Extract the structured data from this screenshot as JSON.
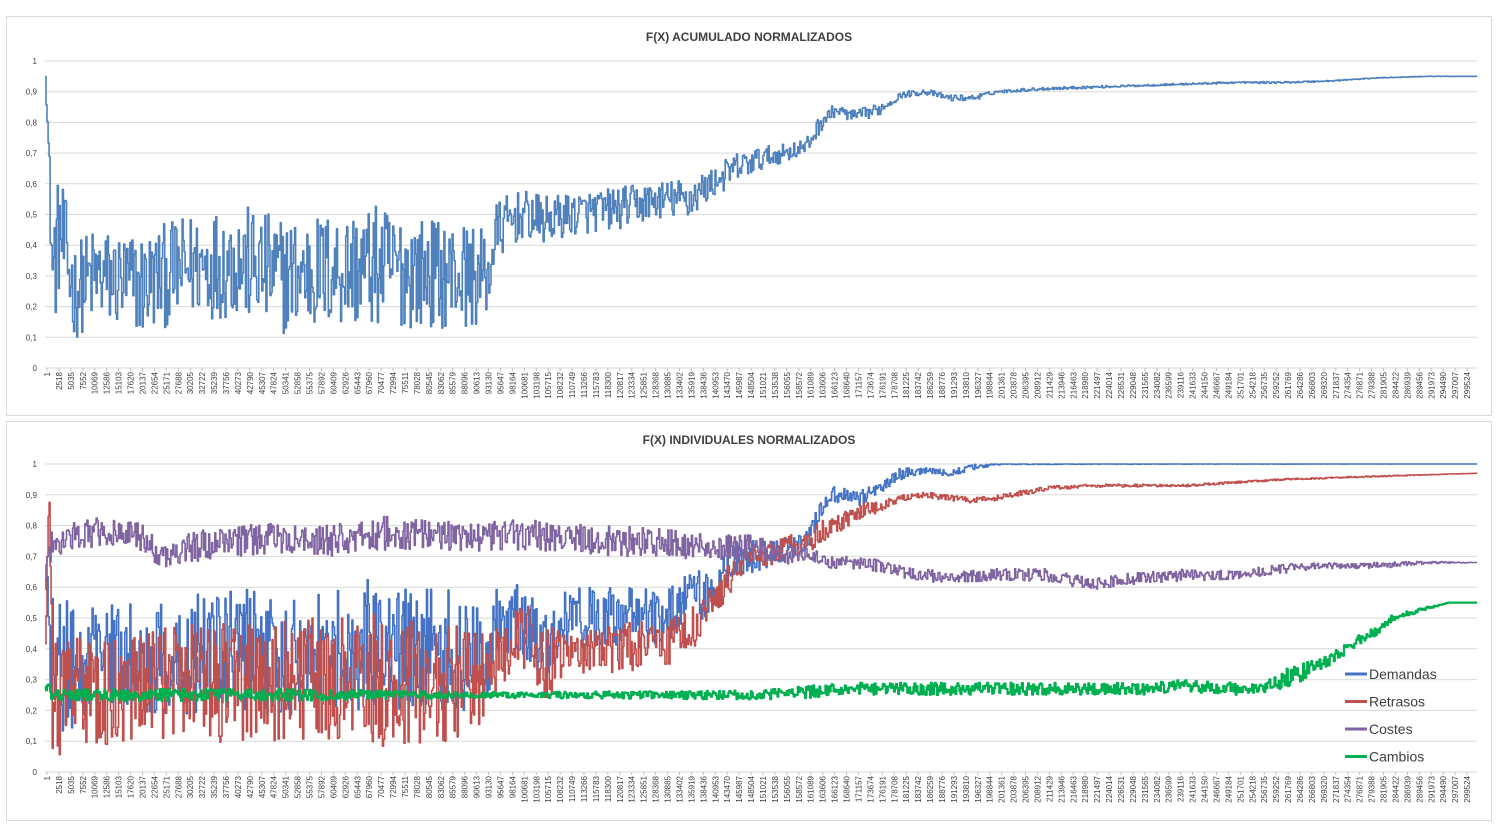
{
  "colors": {
    "demandas": "#4472c4",
    "retrasos": "#c0504d",
    "costes": "#8064a2",
    "cambios": "#00b050",
    "acumulado": "#4f81bd",
    "grid": "#d9d9d9",
    "text": "#3f3f3f"
  },
  "chart_data": [
    {
      "type": "line",
      "title": "F(X) ACUMULADO NORMALIZADOS",
      "xlabel": "",
      "ylabel": "",
      "ylim": [
        0,
        1
      ],
      "yticks": [
        "0",
        "0,1",
        "0,2",
        "0,3",
        "0,4",
        "0,5",
        "0,6",
        "0,7",
        "0,8",
        "0,9",
        "1"
      ],
      "xticks": [
        "1",
        "2518",
        "5035",
        "7552",
        "10069",
        "12586",
        "15103",
        "17620",
        "20137",
        "22654",
        "25171",
        "27688",
        "30205",
        "32722",
        "35239",
        "37756",
        "40273",
        "42790",
        "45307",
        "47824",
        "50341",
        "52858",
        "55375",
        "57892",
        "60409",
        "62926",
        "65443",
        "67960",
        "70477",
        "72994",
        "75511",
        "78028",
        "80545",
        "83062",
        "85579",
        "88096",
        "90613",
        "93130",
        "95647",
        "98164",
        "100681",
        "103198",
        "105715",
        "108232",
        "110749",
        "113266",
        "115783",
        "118300",
        "120817",
        "123334",
        "125851",
        "128368",
        "130885",
        "133402",
        "135919",
        "138436",
        "140953",
        "143470",
        "145987",
        "148504",
        "151021",
        "153538",
        "156055",
        "158572",
        "161089",
        "163606",
        "166123",
        "168640",
        "171157",
        "173674",
        "176191",
        "178708",
        "181225",
        "183742",
        "186259",
        "188776",
        "191293",
        "193810",
        "196327",
        "198844",
        "201361",
        "203878",
        "206395",
        "208912",
        "211429",
        "213946",
        "216463",
        "218980",
        "221497",
        "224014",
        "226531",
        "229048",
        "231565",
        "234082",
        "236599",
        "239116",
        "241633",
        "244150",
        "246667",
        "249184",
        "251701",
        "254218",
        "256735",
        "259252",
        "261769",
        "264286",
        "266803",
        "269320",
        "271837",
        "274354",
        "276871",
        "279388",
        "281905",
        "284422",
        "286939",
        "289456",
        "291973",
        "294490",
        "297007",
        "299524"
      ],
      "grid": true,
      "legend": "none",
      "series": [
        {
          "color": "#4f81bd",
          "x": [
            1,
            600,
            1500,
            3000,
            6000,
            10000,
            20000,
            30000,
            40000,
            50000,
            60000,
            70000,
            80000,
            90000,
            93000,
            95000,
            100000,
            105000,
            110000,
            120000,
            130000,
            135000,
            140000,
            145000,
            150000,
            155000,
            160000,
            163000,
            166000,
            170000,
            175000,
            180000,
            185000,
            190000,
            195000,
            200000,
            210000,
            220000,
            230000,
            240000,
            250000,
            260000,
            270000,
            275000,
            280000,
            290000,
            301000
          ],
          "values": [
            0.95,
            0.74,
            0.3,
            0.45,
            0.25,
            0.3,
            0.27,
            0.33,
            0.35,
            0.3,
            0.32,
            0.33,
            0.31,
            0.3,
            0.3,
            0.45,
            0.5,
            0.48,
            0.5,
            0.52,
            0.55,
            0.55,
            0.6,
            0.65,
            0.68,
            0.7,
            0.72,
            0.8,
            0.84,
            0.82,
            0.84,
            0.89,
            0.9,
            0.88,
            0.88,
            0.9,
            0.91,
            0.915,
            0.92,
            0.925,
            0.93,
            0.93,
            0.935,
            0.94,
            0.945,
            0.95,
            0.95
          ],
          "noise": [
            0,
            0.05,
            0.2,
            0.2,
            0.16,
            0.16,
            0.17,
            0.17,
            0.19,
            0.19,
            0.19,
            0.2,
            0.18,
            0.17,
            0.14,
            0.1,
            0.08,
            0.08,
            0.07,
            0.07,
            0.06,
            0.07,
            0.05,
            0.05,
            0.04,
            0.03,
            0.03,
            0.03,
            0.02,
            0.02,
            0.02,
            0.01,
            0.01,
            0.01,
            0.01,
            0.005,
            0.005,
            0.004,
            0.003,
            0.003,
            0.003,
            0.003,
            0.002,
            0.002,
            0.001,
            0.001,
            0
          ]
        }
      ]
    },
    {
      "type": "line",
      "title": "F(X) INDIVIDUALES NORMALIZADOS",
      "xlabel": "",
      "ylabel": "",
      "ylim": [
        0,
        1
      ],
      "yticks": [
        "0",
        "0,1",
        "0,2",
        "0,3",
        "0,4",
        "0,5",
        "0,6",
        "0,7",
        "0,8",
        "0,9",
        "1"
      ],
      "xticks": [
        "1",
        "2518",
        "5035",
        "7552",
        "10069",
        "12586",
        "15103",
        "17620",
        "20137",
        "22654",
        "25171",
        "27688",
        "30205",
        "32722",
        "35239",
        "37756",
        "40273",
        "42790",
        "45307",
        "47824",
        "50341",
        "52858",
        "55375",
        "57892",
        "60409",
        "62926",
        "65443",
        "67960",
        "70477",
        "72994",
        "75511",
        "78028",
        "80545",
        "83062",
        "85579",
        "88096",
        "90613",
        "93130",
        "95647",
        "98164",
        "100681",
        "103198",
        "105715",
        "108232",
        "110749",
        "113266",
        "115783",
        "118300",
        "120817",
        "123334",
        "125851",
        "128368",
        "130885",
        "133402",
        "135919",
        "138436",
        "140953",
        "143470",
        "145987",
        "148504",
        "151021",
        "153538",
        "156055",
        "158572",
        "161089",
        "163606",
        "166123",
        "168640",
        "171157",
        "173674",
        "176191",
        "178708",
        "181225",
        "183742",
        "186259",
        "188776",
        "191293",
        "193810",
        "196327",
        "198844",
        "201361",
        "203878",
        "206395",
        "208912",
        "211429",
        "213946",
        "216463",
        "218980",
        "221497",
        "224014",
        "226531",
        "229048",
        "231565",
        "234082",
        "236599",
        "239116",
        "241633",
        "244150",
        "246667",
        "249184",
        "251701",
        "254218",
        "256735",
        "259252",
        "261769",
        "264286",
        "266803",
        "269320",
        "271837",
        "274354",
        "276871",
        "279388",
        "281905",
        "284422",
        "286939",
        "289456",
        "291973",
        "294490",
        "297007",
        "299524"
      ],
      "grid": true,
      "legend": "right",
      "series": [
        {
          "name": "Demandas",
          "color": "#4472c4",
          "x": [
            1,
            1500,
            5000,
            10000,
            20000,
            30000,
            40000,
            50000,
            60000,
            70000,
            80000,
            90000,
            93000,
            95000,
            100000,
            105000,
            110000,
            120000,
            130000,
            135000,
            140000,
            145000,
            150000,
            155000,
            160000,
            163000,
            166000,
            170000,
            175000,
            180000,
            185000,
            190000,
            195000,
            200000,
            210000,
            220000,
            301000
          ],
          "values": [
            0.65,
            0.35,
            0.35,
            0.35,
            0.35,
            0.38,
            0.4,
            0.38,
            0.4,
            0.42,
            0.4,
            0.4,
            0.38,
            0.5,
            0.5,
            0.42,
            0.5,
            0.5,
            0.5,
            0.55,
            0.6,
            0.7,
            0.7,
            0.72,
            0.75,
            0.85,
            0.9,
            0.88,
            0.92,
            0.97,
            0.98,
            0.97,
            0.99,
            1.0,
            1.0,
            1.0,
            1.0
          ],
          "noise": [
            0.05,
            0.22,
            0.22,
            0.2,
            0.2,
            0.2,
            0.2,
            0.2,
            0.2,
            0.22,
            0.2,
            0.2,
            0.15,
            0.12,
            0.12,
            0.12,
            0.1,
            0.1,
            0.1,
            0.1,
            0.08,
            0.06,
            0.05,
            0.04,
            0.03,
            0.03,
            0.03,
            0.03,
            0.02,
            0.02,
            0.01,
            0.01,
            0.01,
            0.003,
            0.002,
            0.001,
            0
          ]
        },
        {
          "name": "Retrasos",
          "color": "#c0504d",
          "x": [
            1,
            800,
            1500,
            5000,
            10000,
            20000,
            30000,
            40000,
            50000,
            60000,
            70000,
            80000,
            90000,
            93000,
            95000,
            100000,
            105000,
            110000,
            120000,
            130000,
            135000,
            140000,
            145000,
            150000,
            155000,
            160000,
            163000,
            166000,
            170000,
            175000,
            180000,
            185000,
            190000,
            195000,
            200000,
            210000,
            220000,
            240000,
            260000,
            280000,
            301000
          ],
          "values": [
            0.4,
            0.93,
            0.25,
            0.25,
            0.25,
            0.28,
            0.3,
            0.28,
            0.3,
            0.3,
            0.3,
            0.28,
            0.3,
            0.3,
            0.38,
            0.45,
            0.35,
            0.4,
            0.4,
            0.42,
            0.45,
            0.55,
            0.65,
            0.7,
            0.72,
            0.75,
            0.78,
            0.8,
            0.84,
            0.86,
            0.89,
            0.9,
            0.89,
            0.88,
            0.89,
            0.92,
            0.93,
            0.93,
            0.95,
            0.96,
            0.97
          ],
          "noise": [
            0.05,
            0,
            0.2,
            0.2,
            0.18,
            0.18,
            0.2,
            0.2,
            0.2,
            0.2,
            0.22,
            0.2,
            0.18,
            0.14,
            0.12,
            0.12,
            0.12,
            0.08,
            0.08,
            0.08,
            0.08,
            0.06,
            0.05,
            0.04,
            0.04,
            0.04,
            0.04,
            0.03,
            0.03,
            0.02,
            0.01,
            0.01,
            0.01,
            0.01,
            0.01,
            0.008,
            0.005,
            0.004,
            0.003,
            0.002,
            0
          ]
        },
        {
          "name": "Costes",
          "color": "#8064a2",
          "x": [
            1,
            1500,
            10000,
            20000,
            25000,
            30000,
            40000,
            50000,
            60000,
            70000,
            80000,
            90000,
            100000,
            110000,
            120000,
            130000,
            140000,
            150000,
            155000,
            160000,
            165000,
            170000,
            175000,
            180000,
            190000,
            200000,
            210000,
            220000,
            230000,
            240000,
            250000,
            260000,
            270000,
            280000,
            290000,
            301000
          ],
          "values": [
            0.65,
            0.75,
            0.78,
            0.76,
            0.7,
            0.73,
            0.75,
            0.76,
            0.75,
            0.78,
            0.77,
            0.76,
            0.77,
            0.76,
            0.75,
            0.74,
            0.73,
            0.73,
            0.7,
            0.72,
            0.68,
            0.68,
            0.67,
            0.65,
            0.63,
            0.64,
            0.64,
            0.61,
            0.63,
            0.64,
            0.64,
            0.66,
            0.67,
            0.67,
            0.68,
            0.68
          ],
          "noise": [
            0.03,
            0.05,
            0.05,
            0.05,
            0.04,
            0.05,
            0.05,
            0.05,
            0.05,
            0.06,
            0.05,
            0.05,
            0.05,
            0.05,
            0.05,
            0.05,
            0.04,
            0.04,
            0.03,
            0.03,
            0.02,
            0.02,
            0.02,
            0.02,
            0.02,
            0.02,
            0.02,
            0.02,
            0.02,
            0.02,
            0.015,
            0.015,
            0.01,
            0.01,
            0.005,
            0
          ]
        },
        {
          "name": "Cambios",
          "color": "#00b050",
          "x": [
            1,
            1500,
            20000,
            50000,
            90000,
            100000,
            150000,
            160000,
            170000,
            200000,
            230000,
            240000,
            250000,
            255000,
            260000,
            265000,
            270000,
            275000,
            280000,
            283000,
            290000,
            295000,
            301000
          ],
          "values": [
            0.28,
            0.25,
            0.25,
            0.25,
            0.25,
            0.25,
            0.25,
            0.26,
            0.27,
            0.27,
            0.27,
            0.28,
            0.27,
            0.27,
            0.3,
            0.33,
            0.36,
            0.42,
            0.46,
            0.5,
            0.53,
            0.55,
            0.55
          ],
          "noise": [
            0.02,
            0.02,
            0.02,
            0.02,
            0.01,
            0.01,
            0.015,
            0.02,
            0.02,
            0.02,
            0.02,
            0.02,
            0.02,
            0.015,
            0.03,
            0.03,
            0.02,
            0.02,
            0.015,
            0.01,
            0.005,
            0,
            0
          ]
        }
      ]
    }
  ]
}
